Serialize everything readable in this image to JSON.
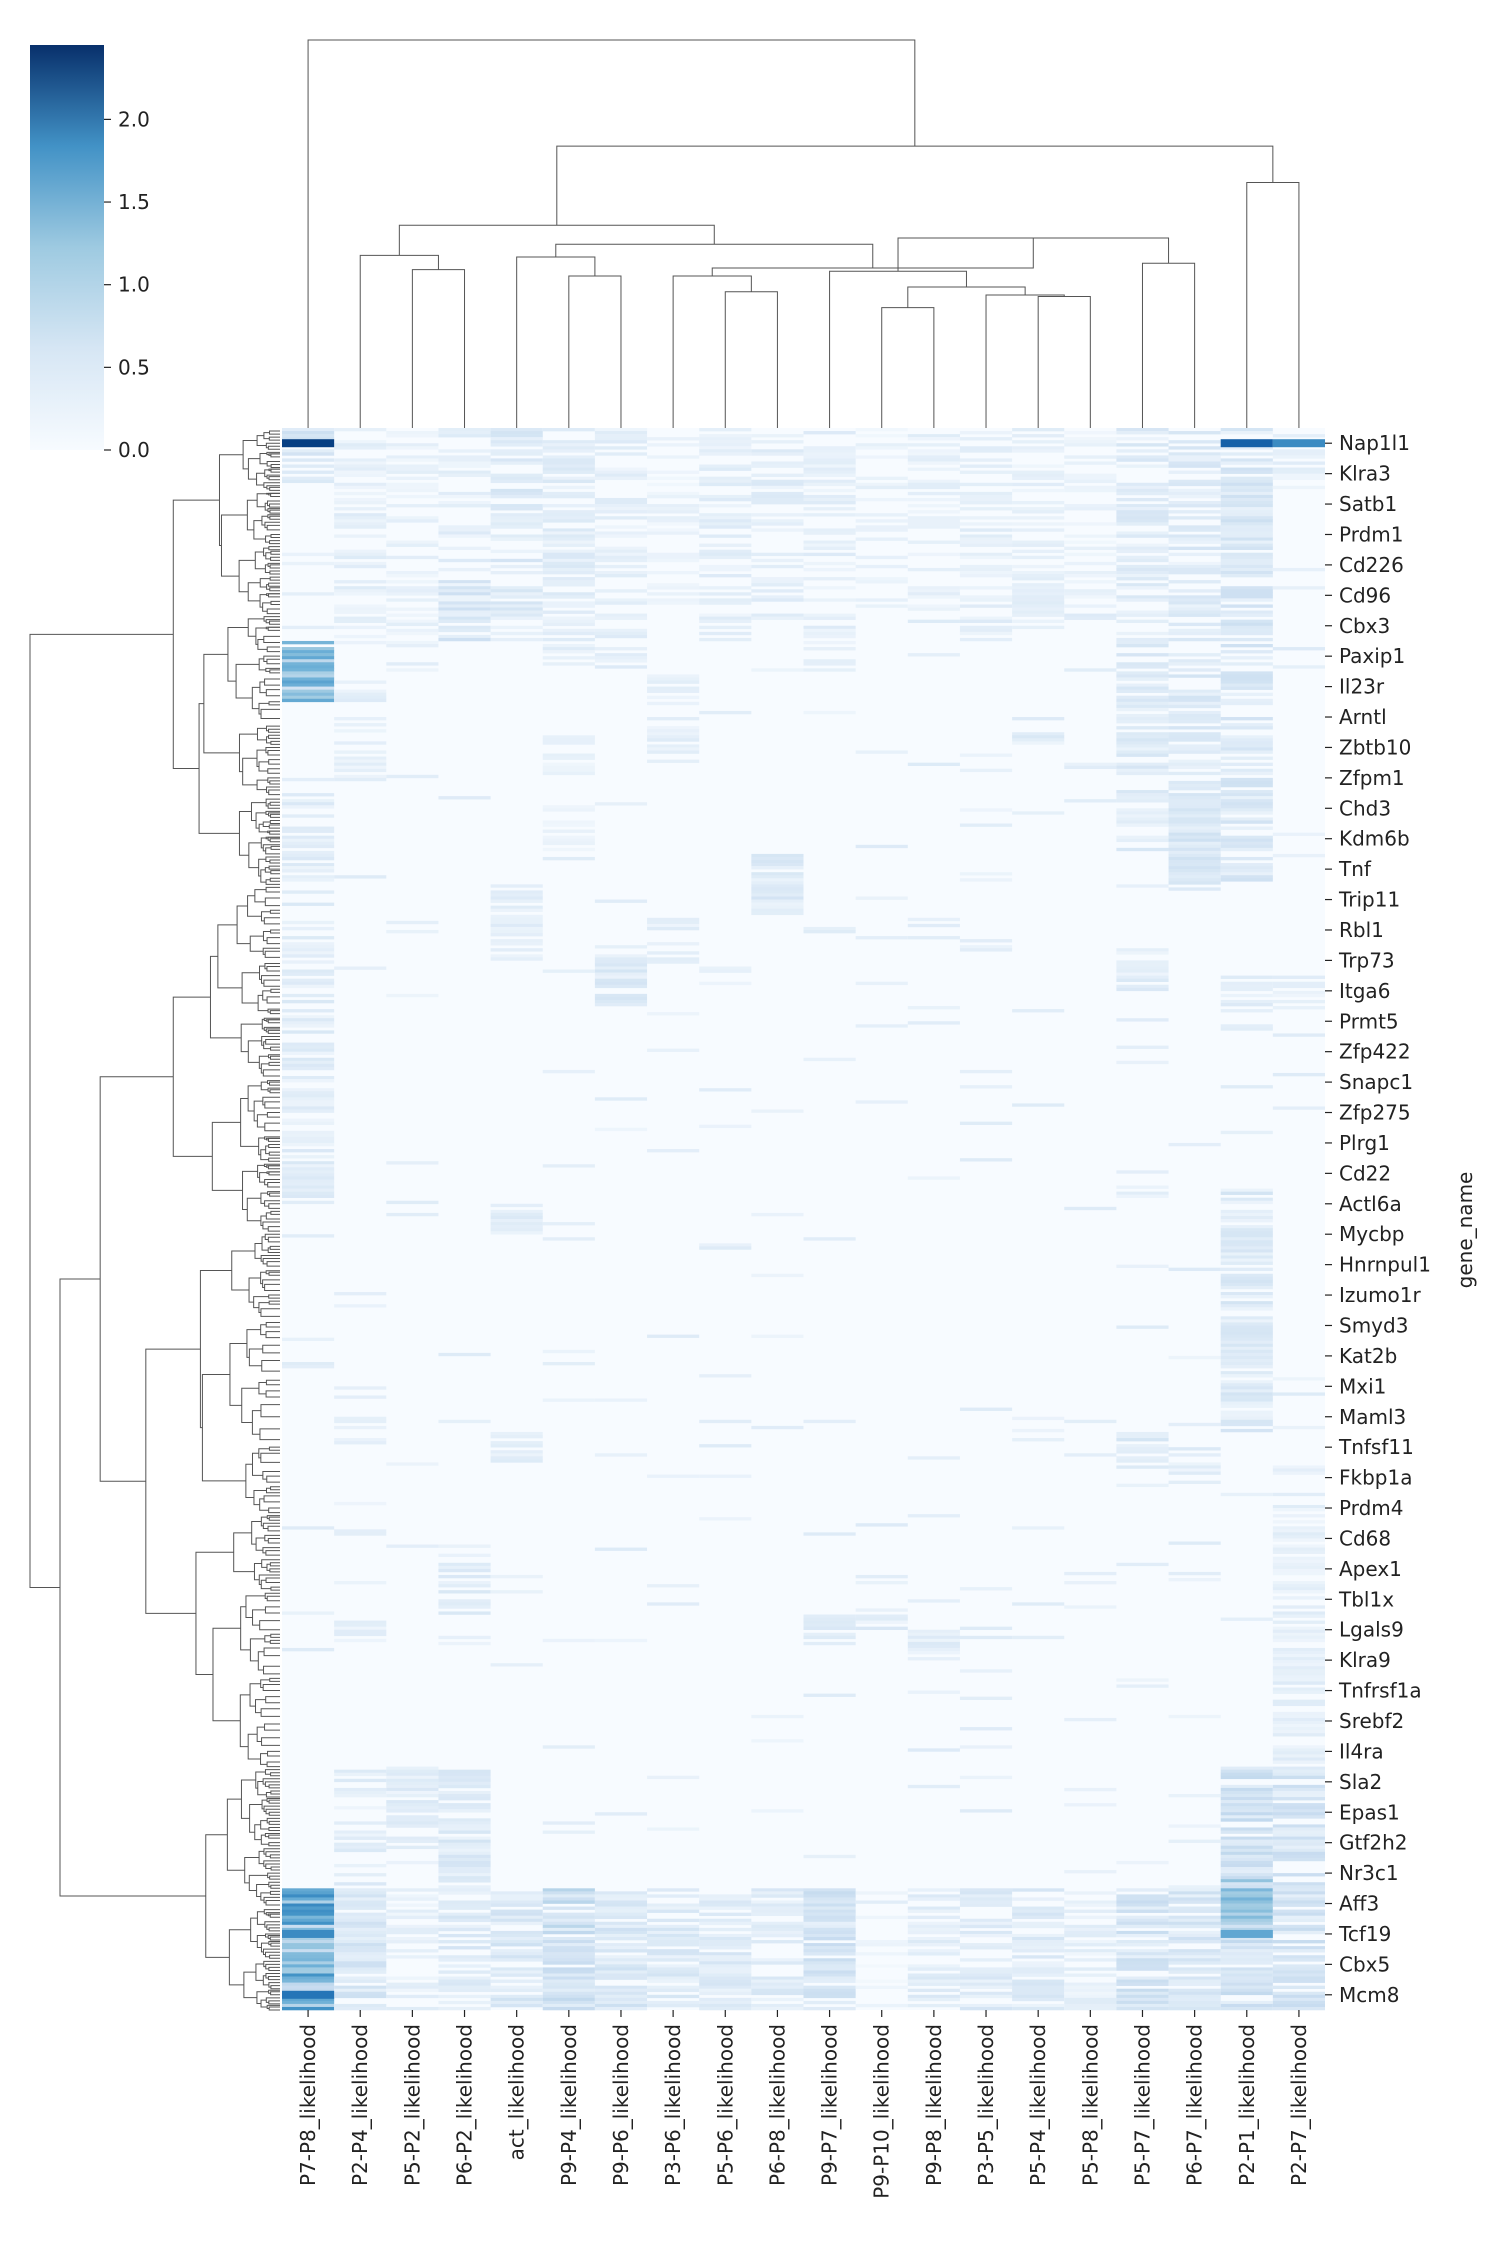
{
  "chart_data": {
    "type": "heatmap",
    "title": "",
    "xlabel": "",
    "ylabel": "gene_name",
    "columns": [
      "P7-P8_likelihood",
      "P2-P4_likelihood",
      "P5-P2_likelihood",
      "P6-P2_likelihood",
      "act_likelihood",
      "P9-P4_likelihood",
      "P9-P6_likelihood",
      "P3-P6_likelihood",
      "P5-P6_likelihood",
      "P6-P8_likelihood",
      "P9-P7_likelihood",
      "P9-P10_likelihood",
      "P9-P8_likelihood",
      "P3-P5_likelihood",
      "P5-P4_likelihood",
      "P5-P8_likelihood",
      "P5-P7_likelihood",
      "P6-P7_likelihood",
      "P2-P1_likelihood",
      "P2-P7_likelihood"
    ],
    "row_labels": [
      "Nap1l1",
      "Klra3",
      "Satb1",
      "Prdm1",
      "Cd226",
      "Cd96",
      "Cbx3",
      "Paxip1",
      "Il23r",
      "Arntl",
      "Zbtb10",
      "Zfpm1",
      "Chd3",
      "Kdm6b",
      "Tnf",
      "Trip11",
      "Rbl1",
      "Trp73",
      "Itga6",
      "Prmt5",
      "Zfp422",
      "Snapc1",
      "Zfp275",
      "Plrg1",
      "Cd22",
      "Actl6a",
      "Mycbp",
      "Hnrnpul1",
      "Izumo1r",
      "Smyd3",
      "Kat2b",
      "Mxi1",
      "Maml3",
      "Tnfsf11",
      "Fkbp1a",
      "Prdm4",
      "Cd68",
      "Apex1",
      "Tbl1x",
      "Lgals9",
      "Klra9",
      "Tnfrsf1a",
      "Srebf2",
      "Il4ra",
      "Sla2",
      "Epas1",
      "Gtf2h2",
      "Nr3c1",
      "Aff3",
      "Tcf19",
      "Cbx5",
      "Mcm8"
    ],
    "colorbar": {
      "min": 0.0,
      "max": 2.45,
      "ticks": [
        "0.0",
        "0.5",
        "1.0",
        "1.5",
        "2.0"
      ],
      "tick_values": [
        0.0,
        0.5,
        1.0,
        1.5,
        2.0
      ],
      "low_color": "#f7fbff",
      "high_color": "#08306b"
    },
    "column_dendrogram": [
      {
        "left": "P2-P4_likelihood",
        "right": "P5-P2_likelihood + P6-P2_likelihood",
        "height": 1.09
      },
      {
        "left": "P5-P2_likelihood",
        "right": "P6-P2_likelihood",
        "height": 1.0
      },
      {
        "left": "P9-P4_likelihood",
        "right": "P9-P6_likelihood",
        "height": 0.96
      },
      {
        "left": "act_likelihood",
        "right": "P9-P4_likelihood + P9-P6_likelihood",
        "height": 1.08
      },
      {
        "left": "P5-P6_likelihood",
        "right": "P6-P8_likelihood",
        "height": 0.86
      },
      {
        "left": "P3-P6_likelihood",
        "right": "P5-P6_likelihood + P6-P8_likelihood",
        "height": 0.96
      },
      {
        "left": "P9-P10_likelihood",
        "right": "P9-P8_likelihood",
        "height": 0.76
      },
      {
        "left": "P5-P4_likelihood",
        "right": "P5-P8_likelihood",
        "height": 0.83
      },
      {
        "left": "P3-P5_likelihood",
        "right": "P5-P4_likelihood + P5-P8_likelihood",
        "height": 0.84
      },
      {
        "left": "P9-P10 + P9-P8",
        "right": "P3-P5 + P5-P4 + P5-P8",
        "height": 0.89
      },
      {
        "left": "P9-P7_likelihood",
        "right": "P9-P10 … P5-P8",
        "height": 0.99
      },
      {
        "left": "P5-P7_likelihood",
        "right": "P6-P7_likelihood",
        "height": 1.04
      },
      {
        "left": "P9-P7 … P5-P8",
        "right": "P5-P7 + P6-P7",
        "height": 1.2
      },
      {
        "left": "P3-P6 … P6-P8",
        "right": "P9-P7 … P6-P7",
        "height": 1.01
      },
      {
        "left": "act … P9-P6",
        "right": "P3-P6 … P6-P7",
        "height": 1.16
      },
      {
        "left": "P2-P4 … P6-P2",
        "right": "act … P6-P7",
        "height": 1.28
      },
      {
        "left": "P2-P1_likelihood",
        "right": "P2-P7_likelihood",
        "height": 1.55
      },
      {
        "left": "P2-P4 … P6-P7",
        "right": "P2-P1 + P2-P7",
        "height": 1.78
      },
      {
        "left": "P7-P8_likelihood",
        "right": "P2-P4 … P2-P7",
        "height": 2.45
      }
    ],
    "highlights": [
      {
        "row": "Nap1l1",
        "column": "P7-P8_likelihood",
        "value": 2.3
      },
      {
        "row": "Nap1l1",
        "column": "P2-P1_likelihood",
        "value": 2.0
      },
      {
        "row": "Nap1l1",
        "column": "P2-P7_likelihood",
        "value": 1.6
      },
      {
        "row": "Mcm8",
        "column": "P7-P8_likelihood",
        "value": 1.8
      },
      {
        "row": "Tcf19",
        "column": "P7-P8_likelihood",
        "value": 1.6
      },
      {
        "row": "Tcf19",
        "column": "P2-P1_likelihood",
        "value": 1.3
      }
    ]
  }
}
